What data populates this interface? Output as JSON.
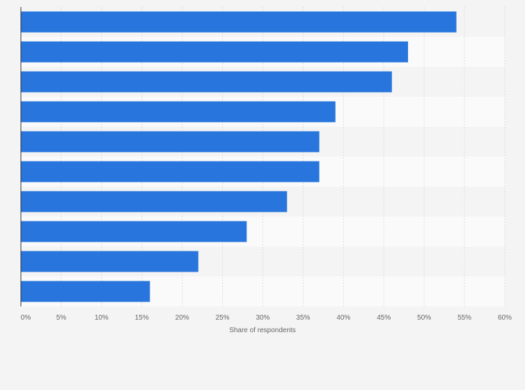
{
  "chart_data": {
    "type": "bar",
    "orientation": "horizontal",
    "categories": [
      "",
      "",
      "",
      "",
      "",
      "",
      "",
      "",
      "",
      ""
    ],
    "values": [
      54,
      48,
      46,
      39,
      37,
      37,
      33,
      28,
      22,
      16
    ],
    "xlabel": "Share of respondents",
    "xlim": [
      0,
      60
    ],
    "xticks": [
      "0%",
      "5%",
      "10%",
      "15%",
      "20%",
      "25%",
      "30%",
      "35%",
      "40%",
      "45%",
      "50%",
      "55%",
      "60%"
    ],
    "grid": true,
    "legend": "none",
    "colors": {
      "bar": "#2876dd",
      "band_a": "#f4f4f4",
      "band_b": "#fafafa",
      "grid": "#dcdcdc",
      "axis": "#333333",
      "text": "#666666"
    }
  }
}
